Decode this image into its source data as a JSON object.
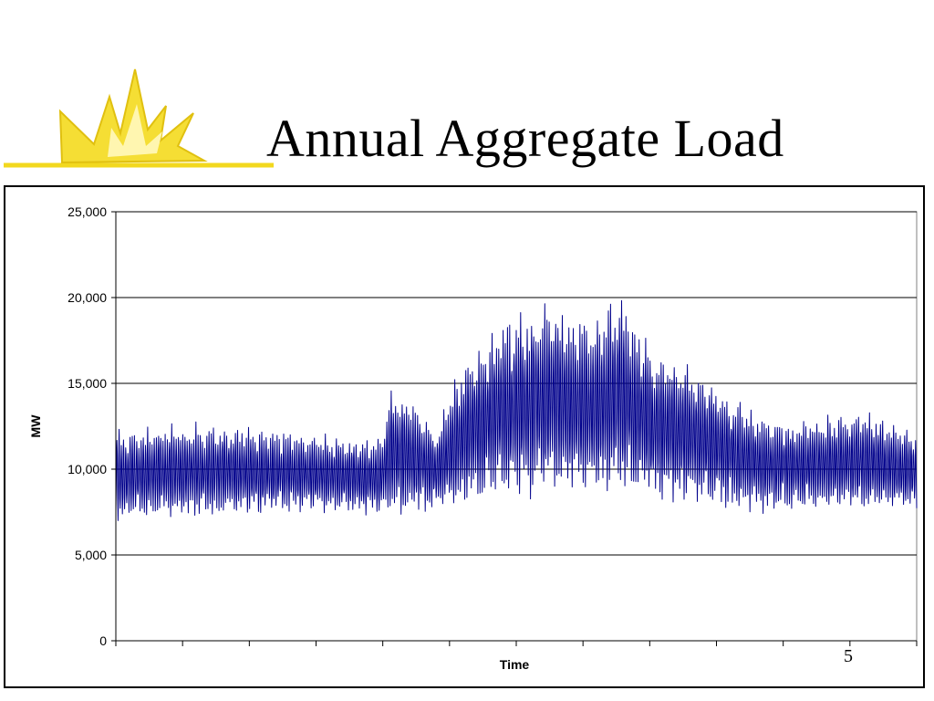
{
  "slide": {
    "title": "Annual Aggregate Load",
    "page_number": "5",
    "accent_color": "#F2D81E",
    "logo_icon": "starburst-icon"
  },
  "chart_data": {
    "type": "line",
    "title": "",
    "xlabel": "Time",
    "ylabel": "MW",
    "ylim": [
      0,
      25000
    ],
    "y_ticks": [
      0,
      5000,
      10000,
      15000,
      20000,
      25000
    ],
    "y_tick_labels": [
      "0",
      "5,000",
      "10,000",
      "15,000",
      "20,000",
      "25,000"
    ],
    "x_tick_count": 12,
    "grid": "horizontal",
    "legend": "none",
    "series_color": "#00008B",
    "series": [
      {
        "name": "",
        "x_range_hours": [
          0,
          8760
        ],
        "sample_hours": [
          0,
          720,
          1460,
          2200,
          2900,
          3000,
          3300,
          3500,
          3800,
          4100,
          4400,
          4800,
          5200,
          5500,
          5900,
          6200,
          6600,
          7000,
          7400,
          7800,
          8200,
          8760
        ],
        "sample_daily_max": [
          12000,
          12400,
          12300,
          11800,
          11500,
          14500,
          13500,
          12000,
          16000,
          17500,
          18500,
          19200,
          18000,
          19800,
          16500,
          16000,
          14500,
          13000,
          12500,
          12800,
          13200,
          12000
        ],
        "sample_daily_min": [
          7200,
          7400,
          7500,
          7700,
          7500,
          7600,
          7700,
          7800,
          8000,
          8500,
          8800,
          9000,
          9000,
          8800,
          8500,
          8300,
          8000,
          7800,
          7800,
          7900,
          7800,
          7800
        ],
        "observed_max": 20000,
        "observed_min": 7000
      }
    ]
  }
}
